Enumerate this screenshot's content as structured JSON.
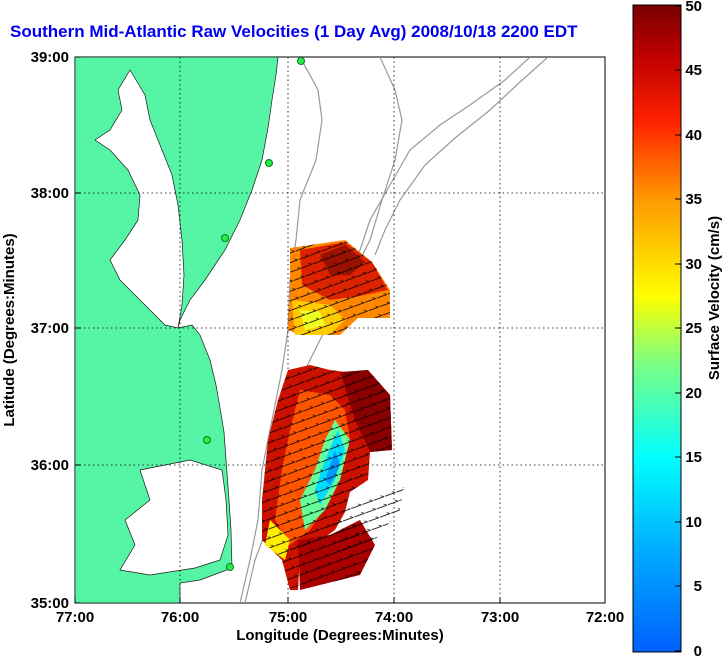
{
  "title": "Southern Mid-Atlantic Raw Velocities (1 Day Avg) 2008/10/18 2200 EDT",
  "map": {
    "xlabel": "Longitude (Degrees:Minutes)",
    "ylabel": "Latitude (Degrees:Minutes)",
    "x_ticks": [
      "77:00",
      "76:00",
      "75:00",
      "74:00",
      "73:00",
      "72:00"
    ],
    "y_ticks": [
      "39:00",
      "38:00",
      "37:00",
      "36:00",
      "35:00"
    ],
    "land_color": "#55f5a5",
    "grid": "dotted"
  },
  "colorbar": {
    "label": "Surface Velocity (cm/s)",
    "ticks": [
      "50",
      "45",
      "40",
      "35",
      "30",
      "25",
      "20",
      "15",
      "10",
      "5",
      "0"
    ],
    "range": [
      0,
      50
    ],
    "colormap": "jet"
  }
}
